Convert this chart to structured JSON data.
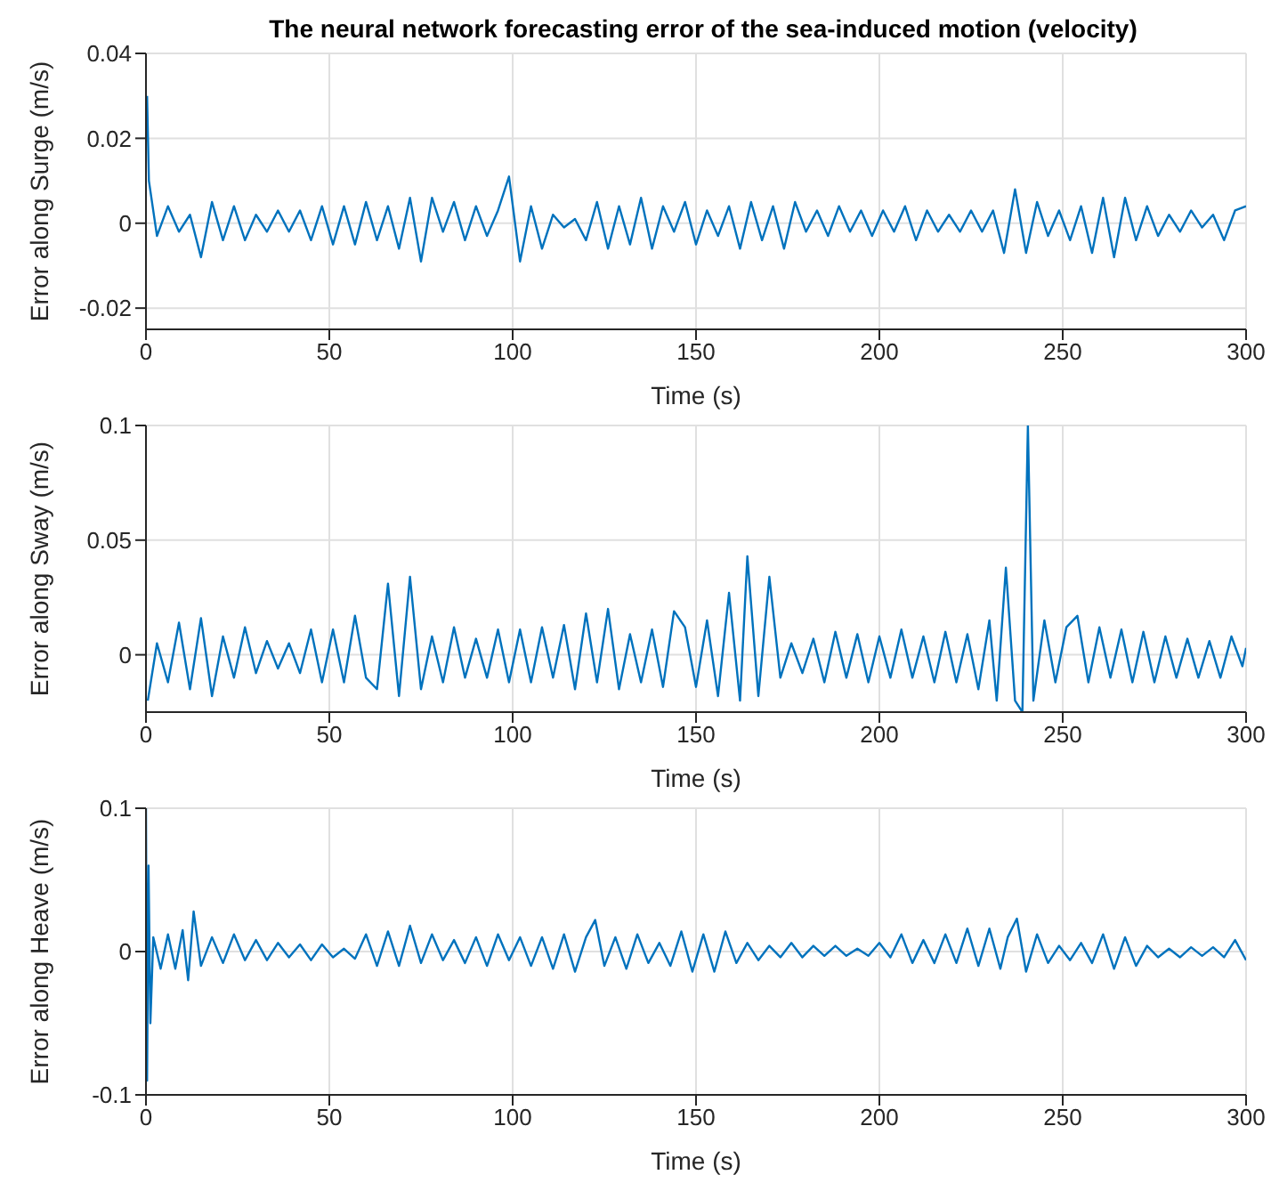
{
  "chart_data": [
    {
      "type": "line",
      "title": "The neural network forecasting error of the sea-induced motion (velocity)",
      "xlabel": "Time (s)",
      "ylabel": "Error along Surge (m/s)",
      "color": "#0072bd",
      "grid": true,
      "xlim": [
        0,
        300
      ],
      "xticks": [
        0,
        50,
        100,
        150,
        200,
        250,
        300
      ],
      "ylim": [
        -0.025,
        0.04
      ],
      "yticks": [
        -0.02,
        0,
        0.02,
        0.04
      ],
      "x": [
        0.3,
        0.8,
        3,
        6,
        9,
        12,
        15,
        18,
        21,
        24,
        27,
        30,
        33,
        36,
        39,
        42,
        45,
        48,
        51,
        54,
        57,
        60,
        63,
        66,
        69,
        72,
        75,
        78,
        81,
        84,
        87,
        90,
        93,
        96,
        99,
        102,
        105,
        108,
        111,
        114,
        117,
        120,
        123,
        126,
        129,
        132,
        135,
        138,
        141,
        144,
        147,
        150,
        153,
        156,
        159,
        162,
        165,
        168,
        171,
        174,
        177,
        180,
        183,
        186,
        189,
        192,
        195,
        198,
        201,
        204,
        207,
        210,
        213,
        216,
        219,
        222,
        225,
        228,
        231,
        234,
        237,
        240,
        243,
        246,
        249,
        252,
        255,
        258,
        261,
        264,
        267,
        270,
        273,
        276,
        279,
        282,
        285,
        288,
        291,
        294,
        297,
        300
      ],
      "values": [
        0.03,
        0.01,
        -0.003,
        0.004,
        -0.002,
        0.002,
        -0.008,
        0.005,
        -0.004,
        0.004,
        -0.004,
        0.002,
        -0.002,
        0.003,
        -0.002,
        0.003,
        -0.004,
        0.004,
        -0.005,
        0.004,
        -0.005,
        0.005,
        -0.004,
        0.004,
        -0.006,
        0.006,
        -0.009,
        0.006,
        -0.002,
        0.005,
        -0.004,
        0.004,
        -0.003,
        0.003,
        0.011,
        -0.009,
        0.004,
        -0.006,
        0.002,
        -0.001,
        0.001,
        -0.004,
        0.005,
        -0.006,
        0.004,
        -0.005,
        0.006,
        -0.006,
        0.004,
        -0.002,
        0.005,
        -0.005,
        0.003,
        -0.003,
        0.004,
        -0.006,
        0.005,
        -0.004,
        0.004,
        -0.006,
        0.005,
        -0.002,
        0.003,
        -0.003,
        0.004,
        -0.002,
        0.003,
        -0.003,
        0.003,
        -0.002,
        0.004,
        -0.004,
        0.003,
        -0.002,
        0.002,
        -0.002,
        0.003,
        -0.002,
        0.003,
        -0.007,
        0.008,
        -0.007,
        0.005,
        -0.003,
        0.003,
        -0.004,
        0.004,
        -0.007,
        0.006,
        -0.008,
        0.006,
        -0.004,
        0.004,
        -0.003,
        0.002,
        -0.002,
        0.003,
        -0.001,
        0.002,
        -0.004,
        0.003,
        0.004
      ]
    },
    {
      "type": "line",
      "xlabel": "Time (s)",
      "ylabel": "Error along Sway (m/s)",
      "color": "#0072bd",
      "grid": true,
      "xlim": [
        0,
        300
      ],
      "xticks": [
        0,
        50,
        100,
        150,
        200,
        250,
        300
      ],
      "ylim": [
        -0.025,
        0.1
      ],
      "yticks": [
        0,
        0.05,
        0.1
      ],
      "x": [
        0.5,
        3,
        6,
        9,
        12,
        15,
        18,
        21,
        24,
        27,
        30,
        33,
        36,
        39,
        42,
        45,
        48,
        51,
        54,
        57,
        60,
        63,
        66,
        69,
        72,
        75,
        78,
        81,
        84,
        87,
        90,
        93,
        96,
        99,
        102,
        105,
        108,
        111,
        114,
        117,
        120,
        123,
        126,
        129,
        132,
        135,
        138,
        141,
        144,
        147,
        150,
        153,
        156,
        159,
        162,
        164,
        167,
        170,
        173,
        176,
        179,
        182,
        185,
        188,
        191,
        194,
        197,
        200,
        203,
        206,
        209,
        212,
        215,
        218,
        221,
        224,
        227,
        230,
        232,
        234.5,
        237,
        239,
        240.5,
        242,
        245,
        248,
        251,
        254,
        257,
        260,
        263,
        266,
        269,
        272,
        275,
        278,
        281,
        284,
        287,
        290,
        293,
        296,
        299,
        300
      ],
      "values": [
        -0.02,
        0.005,
        -0.012,
        0.014,
        -0.015,
        0.016,
        -0.018,
        0.008,
        -0.01,
        0.012,
        -0.008,
        0.006,
        -0.006,
        0.005,
        -0.008,
        0.011,
        -0.012,
        0.011,
        -0.012,
        0.017,
        -0.01,
        -0.015,
        0.031,
        -0.018,
        0.034,
        -0.015,
        0.008,
        -0.012,
        0.012,
        -0.01,
        0.007,
        -0.01,
        0.011,
        -0.012,
        0.011,
        -0.012,
        0.012,
        -0.01,
        0.013,
        -0.015,
        0.018,
        -0.012,
        0.02,
        -0.015,
        0.009,
        -0.012,
        0.011,
        -0.014,
        0.019,
        0.012,
        -0.014,
        0.015,
        -0.018,
        0.027,
        -0.02,
        0.043,
        -0.018,
        0.034,
        -0.01,
        0.005,
        -0.008,
        0.007,
        -0.012,
        0.01,
        -0.01,
        0.009,
        -0.012,
        0.008,
        -0.01,
        0.011,
        -0.01,
        0.008,
        -0.012,
        0.01,
        -0.012,
        0.009,
        -0.015,
        0.015,
        -0.02,
        0.038,
        -0.02,
        -0.025,
        0.1,
        -0.02,
        0.015,
        -0.012,
        0.012,
        0.017,
        -0.012,
        0.012,
        -0.01,
        0.011,
        -0.012,
        0.01,
        -0.012,
        0.008,
        -0.01,
        0.007,
        -0.01,
        0.006,
        -0.01,
        0.008,
        -0.005,
        0.003
      ]
    },
    {
      "type": "line",
      "xlabel": "Time (s)",
      "ylabel": "Error along Heave (m/s)",
      "color": "#0072bd",
      "grid": true,
      "xlim": [
        0,
        300
      ],
      "xticks": [
        0,
        50,
        100,
        150,
        200,
        250,
        300
      ],
      "ylim": [
        -0.1,
        0.1
      ],
      "yticks": [
        -0.1,
        0,
        0.1
      ],
      "x": [
        0,
        0.3,
        0.7,
        1.2,
        2,
        4,
        6,
        8,
        10,
        11.5,
        13,
        15,
        18,
        21,
        24,
        27,
        30,
        33,
        36,
        39,
        42,
        45,
        48,
        51,
        54,
        57,
        60,
        63,
        66,
        69,
        72,
        75,
        78,
        81,
        84,
        87,
        90,
        93,
        96,
        99,
        102,
        105,
        108,
        111,
        114,
        117,
        120,
        122.5,
        125,
        128,
        131,
        134,
        137,
        140,
        143,
        146,
        149,
        152,
        155,
        158,
        161,
        164,
        167,
        170,
        173,
        176,
        179,
        182,
        185,
        188,
        191,
        194,
        197,
        200,
        203,
        206,
        209,
        212,
        215,
        218,
        221,
        224,
        227,
        230,
        233,
        235,
        237.5,
        240,
        243,
        246,
        249,
        252,
        255,
        258,
        261,
        264,
        267,
        270,
        273,
        276,
        279,
        282,
        285,
        288,
        291,
        294,
        297,
        300
      ],
      "values": [
        0.1,
        -0.09,
        0.06,
        -0.05,
        0.01,
        -0.012,
        0.012,
        -0.012,
        0.015,
        -0.02,
        0.028,
        -0.01,
        0.01,
        -0.008,
        0.012,
        -0.006,
        0.008,
        -0.006,
        0.006,
        -0.004,
        0.005,
        -0.006,
        0.005,
        -0.004,
        0.002,
        -0.005,
        0.012,
        -0.01,
        0.014,
        -0.01,
        0.018,
        -0.008,
        0.012,
        -0.006,
        0.008,
        -0.008,
        0.01,
        -0.01,
        0.012,
        -0.006,
        0.01,
        -0.01,
        0.01,
        -0.012,
        0.012,
        -0.014,
        0.01,
        0.022,
        -0.01,
        0.01,
        -0.012,
        0.012,
        -0.008,
        0.006,
        -0.01,
        0.014,
        -0.014,
        0.012,
        -0.014,
        0.014,
        -0.008,
        0.006,
        -0.006,
        0.004,
        -0.004,
        0.006,
        -0.004,
        0.004,
        -0.003,
        0.004,
        -0.003,
        0.002,
        -0.003,
        0.006,
        -0.004,
        0.012,
        -0.008,
        0.008,
        -0.008,
        0.012,
        -0.008,
        0.016,
        -0.01,
        0.016,
        -0.012,
        0.01,
        0.023,
        -0.014,
        0.012,
        -0.008,
        0.004,
        -0.006,
        0.006,
        -0.008,
        0.012,
        -0.012,
        0.01,
        -0.01,
        0.004,
        -0.004,
        0.002,
        -0.004,
        0.003,
        -0.003,
        0.003,
        -0.004,
        0.008,
        -0.006
      ]
    }
  ]
}
